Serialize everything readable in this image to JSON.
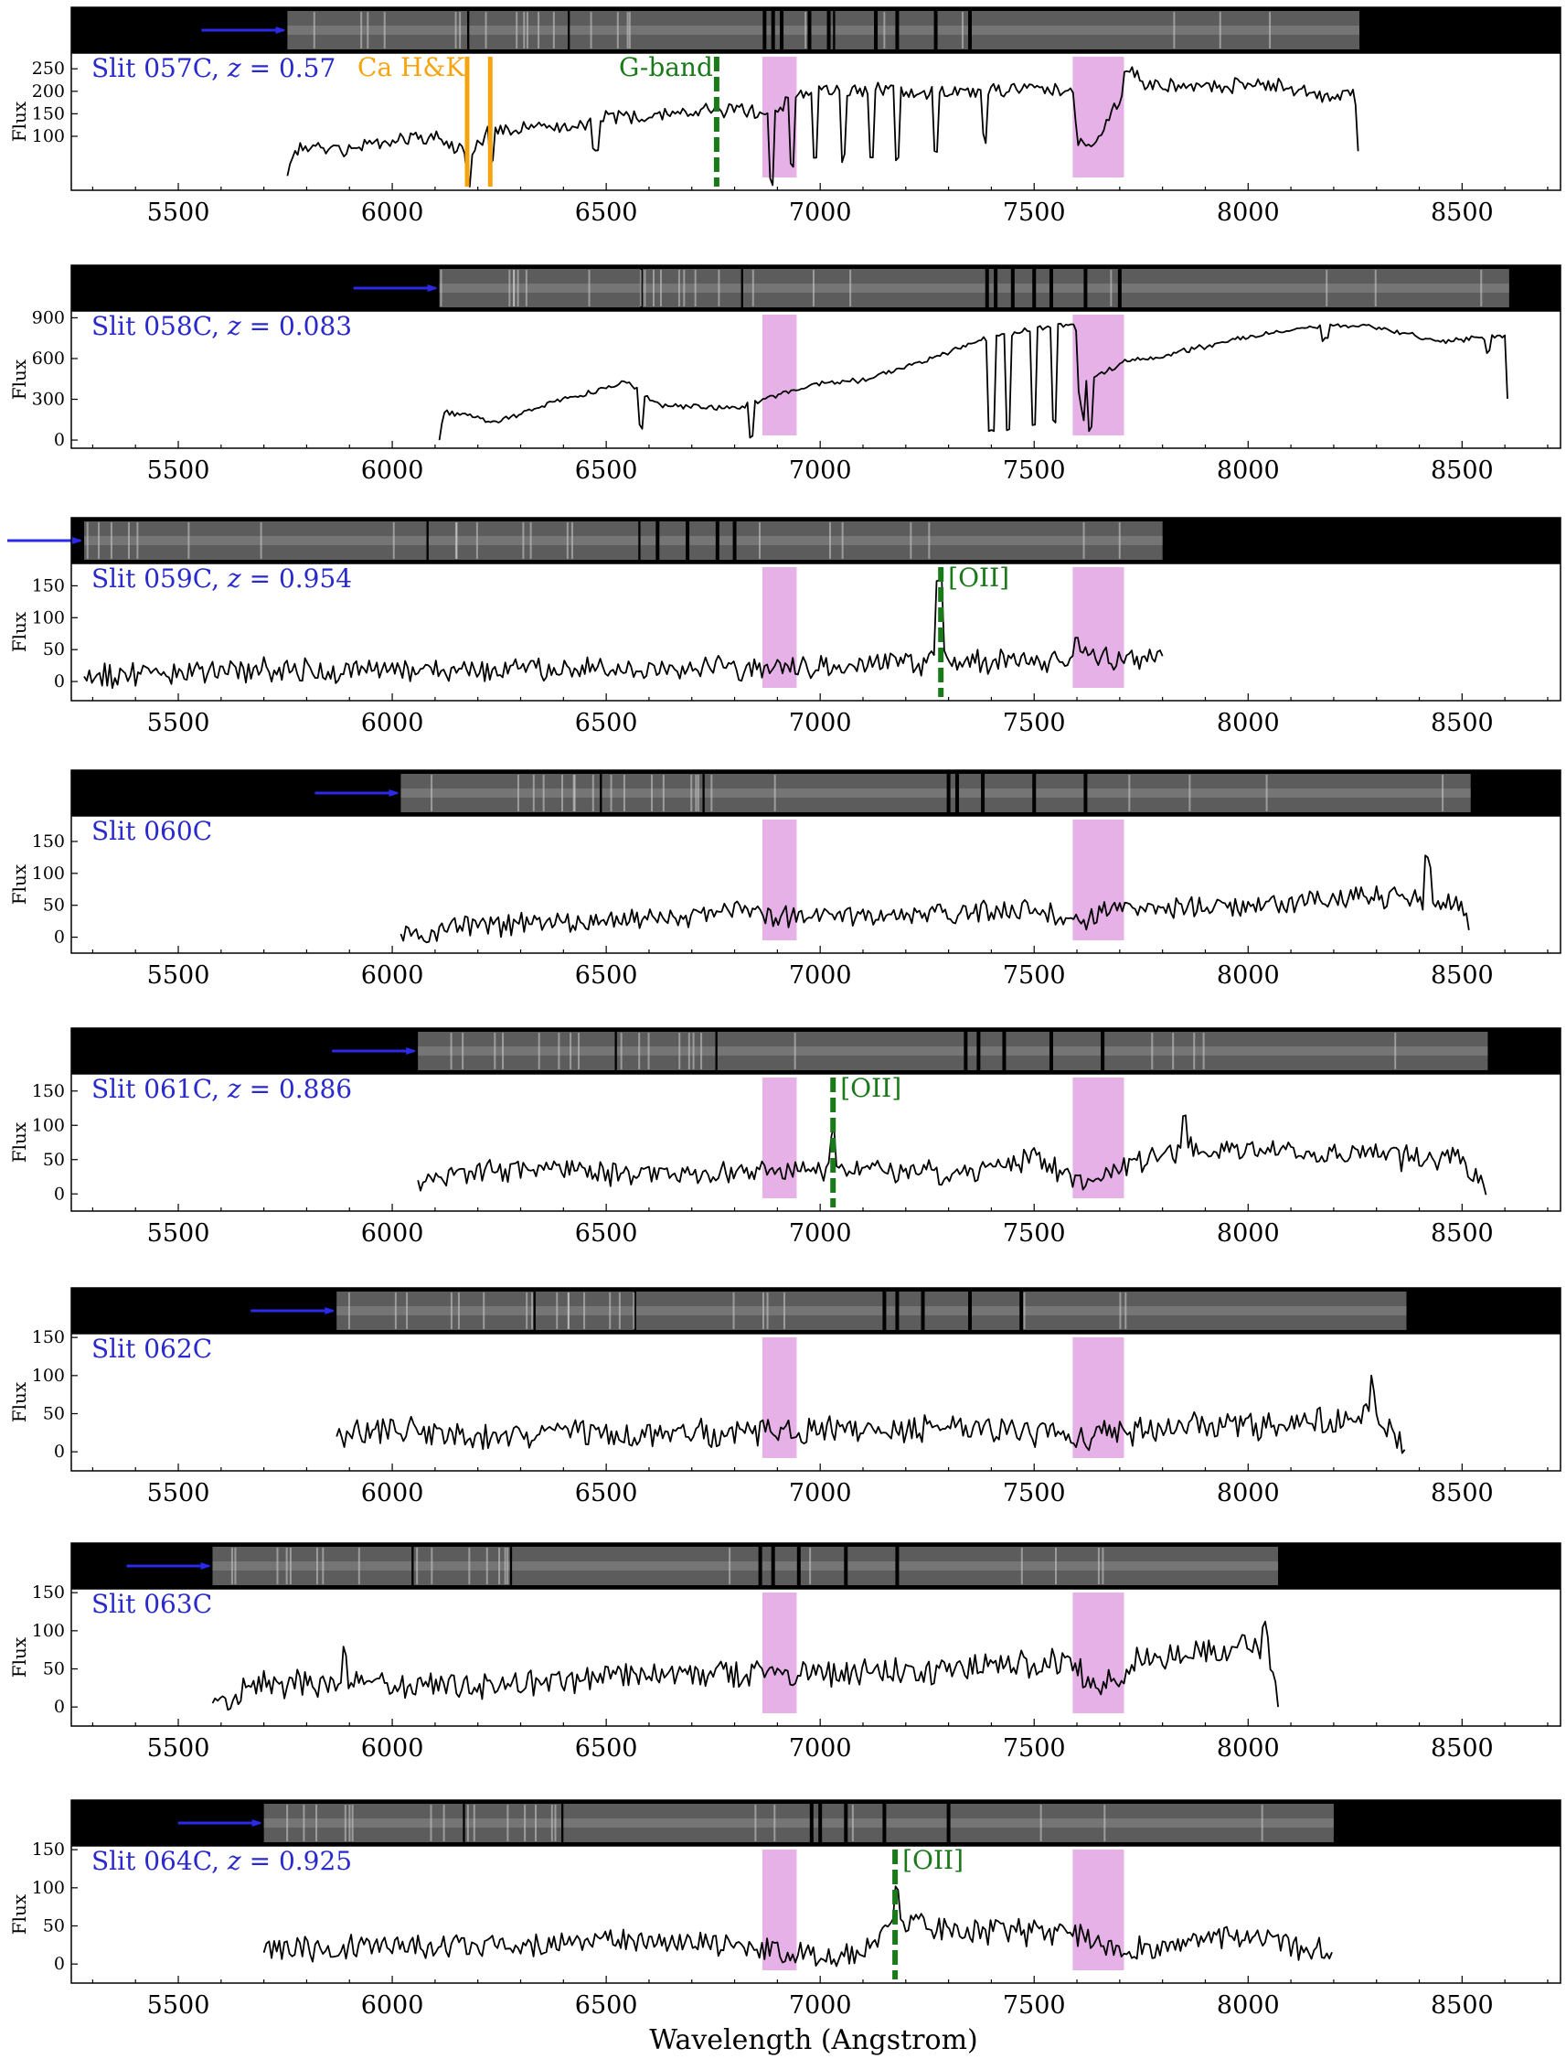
{
  "colors": {
    "slit_label": "#2a2acc",
    "arrow": "#2a2ae8",
    "telluric_band": "#e6b1e6",
    "ca_line": "#f5a40f",
    "redshift_line": "#1a7a1a",
    "spectrum": "#000000",
    "strip_background": "#000000",
    "strip_trace": "#8a8a8a"
  },
  "chart_data": {
    "type": "line",
    "xlabel": "Wavelength (Angstrom)",
    "ylabel": "Flux",
    "xlim": [
      5250,
      8730
    ],
    "xticks": [
      5500,
      6000,
      6500,
      7000,
      7500,
      8000,
      8500
    ],
    "telluric_bands": [
      [
        6865,
        6945
      ],
      [
        7590,
        7710
      ]
    ],
    "panels": [
      {
        "label": "Slit 057C, z = 0.57",
        "label_parts": [
          "Slit 057C, ",
          "z",
          " = 0.57"
        ],
        "ylabel": "Flux",
        "ylim": [
          -20,
          285
        ],
        "yticks": [
          100,
          150,
          200,
          250
        ],
        "x_range": [
          5755,
          8260
        ],
        "strip_chips": [
          [
            5755,
            6175
          ],
          [
            6180,
            6410
          ],
          [
            6415,
            7030
          ],
          [
            7035,
            8260
          ]
        ],
        "strip_gaps": [
          6870,
          6890,
          6910,
          6975,
          7020,
          7130,
          7180,
          7270,
          7350
        ],
        "lines": [
          {
            "label": "Ca H&K",
            "x": [
              6175,
              6229
            ],
            "style": "solid",
            "color_key": "ca_line"
          },
          {
            "label": "G-band",
            "x": [
              6758
            ],
            "style": "dashed",
            "color_key": "redshift_line"
          }
        ],
        "anchors": [
          [
            5755,
            12
          ],
          [
            5770,
            72
          ],
          [
            5900,
            72
          ],
          [
            6000,
            92
          ],
          [
            6100,
            98
          ],
          [
            6175,
            58
          ],
          [
            6230,
            118
          ],
          [
            6400,
            122
          ],
          [
            6500,
            142
          ],
          [
            6650,
            152
          ],
          [
            6760,
            158
          ],
          [
            6820,
            162
          ],
          [
            6880,
            142
          ],
          [
            6950,
            200
          ],
          [
            7150,
            202
          ],
          [
            7300,
            196
          ],
          [
            7500,
            205
          ],
          [
            7590,
            196
          ],
          [
            7600,
            88
          ],
          [
            7640,
            78
          ],
          [
            7700,
            180
          ],
          [
            7715,
            255
          ],
          [
            7760,
            215
          ],
          [
            7900,
            212
          ],
          [
            8050,
            215
          ],
          [
            8200,
            184
          ],
          [
            8250,
            195
          ],
          [
            8260,
            12
          ]
        ],
        "seed": 57,
        "noise": 14,
        "dips": [
          [
            6180,
            -60
          ],
          [
            6232,
            -80
          ],
          [
            6475,
            -60
          ],
          [
            6885,
            -150
          ],
          [
            6935,
            -150
          ],
          [
            6990,
            -150
          ],
          [
            7055,
            -150
          ],
          [
            7120,
            -150
          ],
          [
            7180,
            -150
          ],
          [
            7270,
            -120
          ],
          [
            7385,
            -100
          ]
        ]
      },
      {
        "label": "Slit 058C, z = 0.083",
        "label_parts": [
          "Slit 058C, ",
          "z",
          " = 0.083"
        ],
        "ylabel": "Flux",
        "ylim": [
          -60,
          950
        ],
        "yticks": [
          0,
          300,
          600,
          900
        ],
        "x_range": [
          6110,
          8610
        ],
        "strip_chips": [
          [
            6110,
            6580
          ],
          [
            6585,
            6815
          ],
          [
            6820,
            8610
          ]
        ],
        "strip_gaps": [
          7390,
          7410,
          7450,
          7500,
          7540,
          7620,
          7700
        ],
        "lines": [],
        "anchors": [
          [
            6110,
            0
          ],
          [
            6120,
            210
          ],
          [
            6240,
            130
          ],
          [
            6400,
            300
          ],
          [
            6550,
            430
          ],
          [
            6620,
            260
          ],
          [
            6800,
            230
          ],
          [
            6880,
            310
          ],
          [
            7000,
            420
          ],
          [
            7100,
            440
          ],
          [
            7250,
            590
          ],
          [
            7380,
            740
          ],
          [
            7500,
            820
          ],
          [
            7595,
            860
          ],
          [
            7620,
            420
          ],
          [
            7720,
            590
          ],
          [
            7800,
            620
          ],
          [
            8000,
            760
          ],
          [
            8150,
            840
          ],
          [
            8300,
            830
          ],
          [
            8450,
            730
          ],
          [
            8600,
            760
          ],
          [
            8610,
            0
          ]
        ],
        "seed": 58,
        "noise": 16,
        "dips": [
          [
            6580,
            -250
          ],
          [
            6840,
            -250
          ],
          [
            7400,
            -700
          ],
          [
            7440,
            -700
          ],
          [
            7500,
            -700
          ],
          [
            7545,
            -700
          ],
          [
            7610,
            -350
          ],
          [
            7630,
            -350
          ],
          [
            8180,
            -100
          ],
          [
            8560,
            -100
          ]
        ]
      },
      {
        "label": "Slit 059C, z = 0.954",
        "label_parts": [
          "Slit 059C, ",
          "z",
          " = 0.954"
        ],
        "ylabel": "Flux",
        "ylim": [
          -30,
          185
        ],
        "yticks": [
          0,
          50,
          100,
          150
        ],
        "x_range": [
          5280,
          7800
        ],
        "arrow_offscreen": true,
        "strip_chips": [
          [
            5280,
            6080
          ],
          [
            6085,
            6575
          ],
          [
            6580,
            7800
          ]
        ],
        "strip_gaps": [
          6620,
          6690,
          6760,
          6800
        ],
        "lines": [
          {
            "label": "[OII]",
            "x": [
              7282
            ],
            "style": "dashed",
            "color_key": "redshift_line"
          }
        ],
        "anchors": [
          [
            5280,
            8
          ],
          [
            5500,
            15
          ],
          [
            6000,
            18
          ],
          [
            6500,
            20
          ],
          [
            6900,
            22
          ],
          [
            7200,
            30
          ],
          [
            7500,
            35
          ],
          [
            7800,
            40
          ]
        ],
        "seed": 59,
        "noise": 16,
        "dips": [
          [
            7278,
            135
          ],
          [
            7600,
            40
          ]
        ]
      },
      {
        "label": "Slit 060C",
        "label_parts": [
          "Slit 060C",
          "",
          ""
        ],
        "ylabel": "Flux",
        "ylim": [
          -25,
          190
        ],
        "yticks": [
          0,
          50,
          100,
          150
        ],
        "ticks_in_strip": true,
        "x_range": [
          6020,
          8520
        ],
        "strip_chips": [
          [
            6020,
            6485
          ],
          [
            6490,
            6725
          ],
          [
            6730,
            8520
          ]
        ],
        "strip_gaps": [
          7300,
          7320,
          7380,
          7500,
          7620
        ],
        "lines": [],
        "anchors": [
          [
            6020,
            5
          ],
          [
            6200,
            18
          ],
          [
            6500,
            25
          ],
          [
            6800,
            40
          ],
          [
            7000,
            30
          ],
          [
            7200,
            35
          ],
          [
            7500,
            45
          ],
          [
            7600,
            20
          ],
          [
            7700,
            45
          ],
          [
            8000,
            50
          ],
          [
            8300,
            60
          ],
          [
            8500,
            55
          ],
          [
            8520,
            0
          ]
        ],
        "seed": 60,
        "noise": 15,
        "dips": [
          [
            8420,
            70
          ]
        ]
      },
      {
        "label": "Slit 061C, z = 0.886",
        "label_parts": [
          "Slit 061C, ",
          "z",
          " = 0.886"
        ],
        "ylabel": "Flux",
        "ylim": [
          -25,
          175
        ],
        "yticks": [
          0,
          50,
          100,
          150
        ],
        "ticks_in_strip": true,
        "x_range": [
          6060,
          8560
        ],
        "strip_chips": [
          [
            6060,
            6520
          ],
          [
            6525,
            6755
          ],
          [
            6760,
            8560
          ]
        ],
        "strip_gaps": [
          7340,
          7370,
          7430,
          7540,
          7660
        ],
        "lines": [
          {
            "label": "[OII]",
            "x": [
              7030
            ],
            "style": "dashed",
            "color_key": "redshift_line"
          }
        ],
        "anchors": [
          [
            6060,
            20
          ],
          [
            6200,
            35
          ],
          [
            6500,
            28
          ],
          [
            6800,
            30
          ],
          [
            7000,
            40
          ],
          [
            7300,
            30
          ],
          [
            7500,
            50
          ],
          [
            7600,
            15
          ],
          [
            7700,
            40
          ],
          [
            7900,
            70
          ],
          [
            8200,
            55
          ],
          [
            8500,
            50
          ],
          [
            8560,
            -5
          ]
        ],
        "seed": 61,
        "noise": 15,
        "dips": [
          [
            7030,
            55
          ],
          [
            7850,
            40
          ]
        ]
      },
      {
        "label": "Slit 062C",
        "label_parts": [
          "Slit 062C",
          "",
          ""
        ],
        "ylabel": "Flux",
        "ylim": [
          -25,
          155
        ],
        "yticks": [
          0,
          50,
          100,
          150
        ],
        "ticks_in_strip": true,
        "x_range": [
          5870,
          8370
        ],
        "strip_chips": [
          [
            5870,
            6330
          ],
          [
            6335,
            6565
          ],
          [
            6570,
            8370
          ]
        ],
        "strip_gaps": [
          7150,
          7180,
          7240,
          7350,
          7470
        ],
        "lines": [],
        "anchors": [
          [
            5870,
            20
          ],
          [
            6000,
            30
          ],
          [
            6200,
            20
          ],
          [
            6500,
            25
          ],
          [
            6800,
            25
          ],
          [
            7100,
            30
          ],
          [
            7400,
            30
          ],
          [
            7600,
            20
          ],
          [
            7800,
            30
          ],
          [
            8100,
            35
          ],
          [
            8300,
            50
          ],
          [
            8370,
            0
          ]
        ],
        "seed": 62,
        "noise": 15,
        "dips": [
          [
            8290,
            50
          ]
        ]
      },
      {
        "label": "Slit 063C",
        "label_parts": [
          "Slit 063C",
          "",
          ""
        ],
        "ylabel": "Flux",
        "ylim": [
          -25,
          155
        ],
        "yticks": [
          0,
          50,
          100,
          150
        ],
        "ticks_in_strip": true,
        "x_range": [
          5580,
          8070
        ],
        "strip_chips": [
          [
            5580,
            6045
          ],
          [
            6050,
            6275
          ],
          [
            6280,
            8070
          ]
        ],
        "strip_gaps": [
          6860,
          6890,
          6950,
          7060,
          7180
        ],
        "lines": [],
        "anchors": [
          [
            5580,
            5
          ],
          [
            5700,
            30
          ],
          [
            6000,
            28
          ],
          [
            6300,
            30
          ],
          [
            6600,
            40
          ],
          [
            7000,
            42
          ],
          [
            7300,
            50
          ],
          [
            7590,
            60
          ],
          [
            7640,
            25
          ],
          [
            7750,
            65
          ],
          [
            8000,
            80
          ],
          [
            8060,
            55
          ],
          [
            8070,
            0
          ]
        ],
        "seed": 63,
        "noise": 15,
        "dips": [
          [
            5890,
            50
          ],
          [
            8040,
            40
          ]
        ]
      },
      {
        "label": "Slit 064C, z = 0.925",
        "label_parts": [
          "Slit 064C, ",
          "z",
          " = 0.925"
        ],
        "ylabel": "Flux",
        "ylim": [
          -25,
          155
        ],
        "yticks": [
          0,
          50,
          100,
          150
        ],
        "ticks_in_strip": true,
        "x_range": [
          5700,
          8200
        ],
        "strip_chips": [
          [
            5700,
            6165
          ],
          [
            6170,
            6395
          ],
          [
            6400,
            8200
          ]
        ],
        "strip_gaps": [
          6980,
          7000,
          7060,
          7150,
          7300
        ],
        "lines": [
          {
            "label": "[OII]",
            "x": [
              7175
            ],
            "style": "dashed",
            "color_key": "redshift_line"
          }
        ],
        "anchors": [
          [
            5700,
            15
          ],
          [
            5900,
            25
          ],
          [
            6200,
            25
          ],
          [
            6500,
            30
          ],
          [
            6800,
            25
          ],
          [
            7000,
            10
          ],
          [
            7100,
            15
          ],
          [
            7180,
            60
          ],
          [
            7300,
            45
          ],
          [
            7600,
            40
          ],
          [
            7700,
            20
          ],
          [
            8000,
            35
          ],
          [
            8200,
            15
          ]
        ],
        "seed": 64,
        "noise": 14,
        "dips": [
          [
            7178,
            40
          ]
        ]
      }
    ]
  }
}
